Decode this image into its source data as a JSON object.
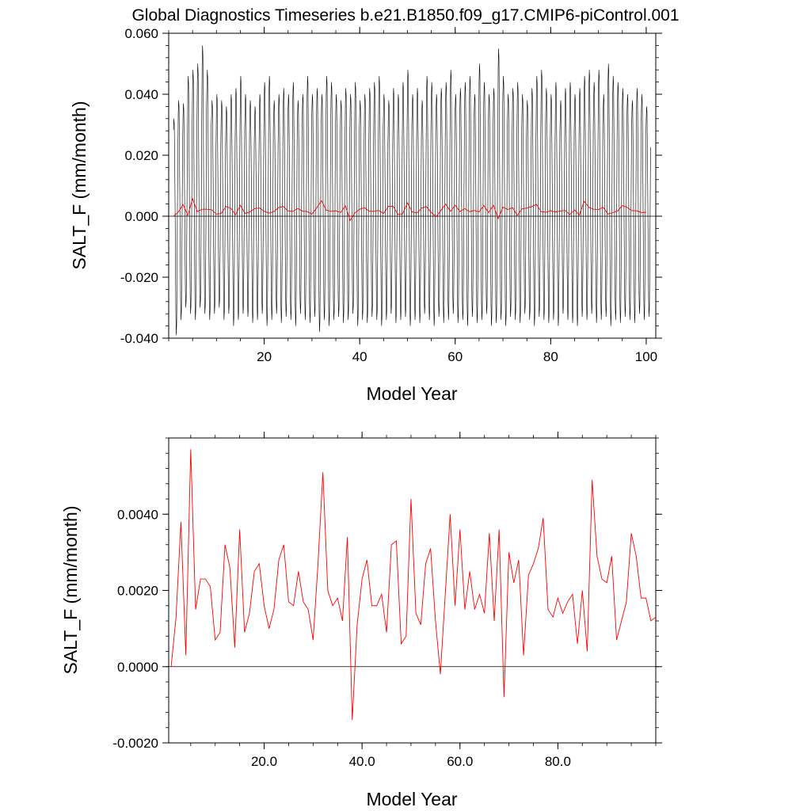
{
  "title": "Global Diagnostics Timeseries b.e21.B1850.f09_g17.CMIP6-piControl.001",
  "colors": {
    "monthly": "#000000",
    "annual": "#ff0000",
    "zero_line": "#000000"
  },
  "chart_data": [
    {
      "type": "line",
      "panel": "monthly-and-annual",
      "xlabel": "Model Year",
      "ylabel": "SALT_F (mm/month)",
      "xlim": [
        0.0,
        102.0
      ],
      "ylim": [
        -0.04,
        0.06
      ],
      "xticks": [
        20,
        40,
        60,
        80,
        100
      ],
      "xtick_labels": [
        "20",
        "40",
        "60",
        "80",
        "100"
      ],
      "yticks": [
        -0.04,
        -0.02,
        0.0,
        0.02,
        0.04,
        0.06
      ],
      "ytick_labels": [
        "-0.040",
        "-0.020",
        "0.000",
        "0.020",
        "0.040",
        "0.060"
      ],
      "reference_line_y": 0.0,
      "monthly_series": {
        "annual_cycle_template": [
          0.031,
          0.035,
          0.033,
          0.02,
          0.005,
          -0.012,
          -0.027,
          -0.033,
          -0.03,
          -0.015,
          0.004,
          0.022
        ],
        "yearly_peak": [
          0.032,
          0.038,
          0.037,
          0.046,
          0.048,
          0.05,
          0.056,
          0.048,
          0.038,
          0.04,
          0.038,
          0.036,
          0.04,
          0.042,
          0.046,
          0.04,
          0.038,
          0.036,
          0.04,
          0.044,
          0.046,
          0.038,
          0.04,
          0.042,
          0.04,
          0.044,
          0.038,
          0.04,
          0.046,
          0.04,
          0.042,
          0.04,
          0.046,
          0.044,
          0.04,
          0.038,
          0.042,
          0.04,
          0.044,
          0.038,
          0.04,
          0.042,
          0.044,
          0.046,
          0.04,
          0.038,
          0.042,
          0.04,
          0.044,
          0.048,
          0.04,
          0.042,
          0.038,
          0.046,
          0.044,
          0.04,
          0.042,
          0.044,
          0.048,
          0.04,
          0.042,
          0.044,
          0.046,
          0.04,
          0.05,
          0.044,
          0.04,
          0.042,
          0.055,
          0.046,
          0.04,
          0.042,
          0.044,
          0.04,
          0.038,
          0.042,
          0.046,
          0.048,
          0.042,
          0.04,
          0.044,
          0.038,
          0.042,
          0.044,
          0.04,
          0.042,
          0.046,
          0.048,
          0.044,
          0.048,
          0.04,
          0.05,
          0.046,
          0.044,
          0.042,
          0.04,
          0.038,
          0.042,
          0.04,
          0.036
        ],
        "yearly_trough": [
          -0.039,
          -0.034,
          -0.03,
          -0.032,
          -0.034,
          -0.03,
          -0.032,
          -0.034,
          -0.032,
          -0.03,
          -0.034,
          -0.032,
          -0.036,
          -0.034,
          -0.032,
          -0.033,
          -0.035,
          -0.034,
          -0.032,
          -0.036,
          -0.034,
          -0.032,
          -0.035,
          -0.033,
          -0.034,
          -0.036,
          -0.032,
          -0.034,
          -0.035,
          -0.033,
          -0.038,
          -0.034,
          -0.036,
          -0.034,
          -0.033,
          -0.035,
          -0.034,
          -0.032,
          -0.036,
          -0.034,
          -0.035,
          -0.033,
          -0.034,
          -0.036,
          -0.034,
          -0.032,
          -0.035,
          -0.034,
          -0.033,
          -0.036,
          -0.034,
          -0.035,
          -0.032,
          -0.034,
          -0.036,
          -0.033,
          -0.035,
          -0.034,
          -0.032,
          -0.035,
          -0.034,
          -0.036,
          -0.033,
          -0.035,
          -0.034,
          -0.032,
          -0.036,
          -0.035,
          -0.034,
          -0.036,
          -0.033,
          -0.034,
          -0.035,
          -0.032,
          -0.034,
          -0.036,
          -0.033,
          -0.034,
          -0.035,
          -0.034,
          -0.036,
          -0.032,
          -0.034,
          -0.035,
          -0.036,
          -0.033,
          -0.034,
          -0.032,
          -0.035,
          -0.034,
          -0.033,
          -0.036,
          -0.034,
          -0.035,
          -0.033,
          -0.034,
          -0.035,
          -0.032,
          -0.034,
          -0.033
        ]
      }
    },
    {
      "type": "line",
      "panel": "annual-mean",
      "xlabel": "Model Year",
      "ylabel": "SALT_F (mm/month)",
      "xlim": [
        0.5,
        100.0
      ],
      "ylim": [
        -0.002,
        0.006
      ],
      "xticks": [
        20,
        40,
        60,
        80
      ],
      "xtick_labels": [
        "20.0",
        "40.0",
        "60.0",
        "80.0"
      ],
      "yticks": [
        -0.002,
        0.0,
        0.002,
        0.004
      ],
      "ytick_labels": [
        "-0.0020",
        "0.0000",
        "0.0020",
        "0.0040"
      ],
      "reference_line_y": 0.0,
      "x": [
        1,
        2,
        3,
        4,
        5,
        6,
        7,
        8,
        9,
        10,
        11,
        12,
        13,
        14,
        15,
        16,
        17,
        18,
        19,
        20,
        21,
        22,
        23,
        24,
        25,
        26,
        27,
        28,
        29,
        30,
        31,
        32,
        33,
        34,
        35,
        36,
        37,
        38,
        39,
        40,
        41,
        42,
        43,
        44,
        45,
        46,
        47,
        48,
        49,
        50,
        51,
        52,
        53,
        54,
        55,
        56,
        57,
        58,
        59,
        60,
        61,
        62,
        63,
        64,
        65,
        66,
        67,
        68,
        69,
        70,
        71,
        72,
        73,
        74,
        75,
        76,
        77,
        78,
        79,
        80,
        81,
        82,
        83,
        84,
        85,
        86,
        87,
        88,
        89,
        90,
        91,
        92,
        93,
        94,
        95,
        96,
        97,
        98,
        99,
        100
      ],
      "y": [
        0.0,
        0.0013,
        0.0038,
        0.0003,
        0.0057,
        0.0015,
        0.0023,
        0.0023,
        0.0021,
        0.0007,
        0.0009,
        0.0032,
        0.0026,
        0.0005,
        0.0036,
        0.0009,
        0.0014,
        0.0025,
        0.0027,
        0.0016,
        0.001,
        0.0015,
        0.0028,
        0.0032,
        0.0017,
        0.0016,
        0.0025,
        0.0017,
        0.0015,
        0.0007,
        0.0027,
        0.0051,
        0.002,
        0.0016,
        0.0018,
        0.0012,
        0.0034,
        -0.0014,
        0.0011,
        0.0023,
        0.0028,
        0.0016,
        0.0016,
        0.0019,
        0.0009,
        0.0032,
        0.0033,
        0.0006,
        0.0008,
        0.0044,
        0.0014,
        0.0011,
        0.0027,
        0.0031,
        0.0012,
        -0.0002,
        0.0019,
        0.004,
        0.0016,
        0.0036,
        0.0015,
        0.0025,
        0.0015,
        0.0019,
        0.0014,
        0.0035,
        0.0012,
        0.0036,
        -0.0008,
        0.003,
        0.0022,
        0.0028,
        0.0003,
        0.0024,
        0.0027,
        0.0031,
        0.0039,
        0.0015,
        0.0013,
        0.0018,
        0.0014,
        0.0017,
        0.0019,
        0.0006,
        0.002,
        0.0004,
        0.0049,
        0.0029,
        0.0023,
        0.0022,
        0.0029,
        0.0007,
        0.0012,
        0.0017,
        0.0035,
        0.0029,
        0.0018,
        0.0018,
        0.0012,
        0.0013
      ]
    }
  ]
}
